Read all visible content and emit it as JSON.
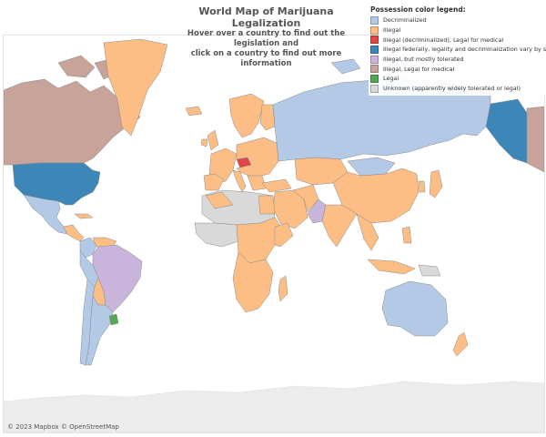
{
  "map": {
    "title": "World Map of Marijuana Legalization",
    "subtitle_line1": "Hover over a country to find out the legislation and",
    "subtitle_line2": "click on a country to find out more information",
    "attribution": "© 2023 Mapbox © OpenStreetMap"
  },
  "legend": {
    "title": "Possession color legend:",
    "items": [
      {
        "label": "Decriminalized",
        "color": "#b3c9e6"
      },
      {
        "label": "Illegal",
        "color": "#fdbe85"
      },
      {
        "label": "Illegal (decriminalized), Legal for medical",
        "color": "#e04646"
      },
      {
        "label": "Illegal federally, legality and decriminalization vary by state",
        "color": "#3d87b8"
      },
      {
        "label": "Illegal, but mostly tolerated",
        "color": "#c9b4dc"
      },
      {
        "label": "Illegal, Legal for medical",
        "color": "#c8a39a"
      },
      {
        "label": "Legal",
        "color": "#52a852"
      },
      {
        "label": "Unknown (apparently widely tolerated or legal)",
        "color": "#d9d9d9"
      }
    ]
  },
  "colors": {
    "land_unknown": "#e8e8e8",
    "border": "#8a8a8a",
    "antarctica": "#ececec"
  }
}
